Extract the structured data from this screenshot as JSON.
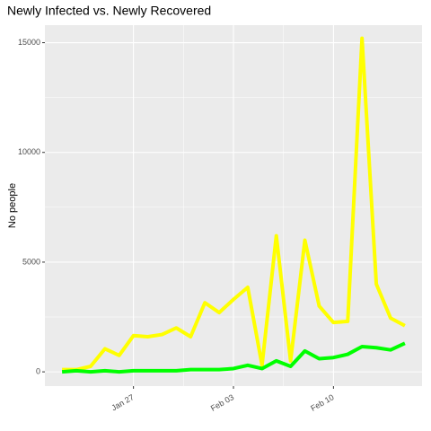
{
  "chart_data": {
    "type": "line",
    "title": "Newly Infected vs. Newly Recovered",
    "y_label": "No people",
    "categories": [
      "Jan 22",
      "Jan 23",
      "Jan 24",
      "Jan 25",
      "Jan 26",
      "Jan 27",
      "Jan 28",
      "Jan 29",
      "Jan 30",
      "Jan 31",
      "Feb 01",
      "Feb 02",
      "Feb 03",
      "Feb 04",
      "Feb 05",
      "Feb 06",
      "Feb 07",
      "Feb 08",
      "Feb 09",
      "Feb 10",
      "Feb 11",
      "Feb 12",
      "Feb 13",
      "Feb 14",
      "Feb 15"
    ],
    "xticks": [
      "Jan 27",
      "Feb 03",
      "Feb 10"
    ],
    "series": [
      {
        "color": "#ffff00",
        "values": [
          100,
          100,
          250,
          1050,
          750,
          1650,
          1600,
          1700,
          2000,
          1600,
          3150,
          2700,
          3300,
          3850,
          300,
          6200,
          500,
          6000,
          3000,
          2250,
          2300,
          15200,
          4000,
          2450,
          2100
        ]
      },
      {
        "color": "#00ff00",
        "values": [
          0,
          50,
          0,
          50,
          0,
          50,
          50,
          50,
          50,
          100,
          100,
          100,
          150,
          300,
          150,
          500,
          250,
          950,
          600,
          650,
          800,
          1150,
          1100,
          1000,
          1300
        ]
      }
    ],
    "ylim": [
      -650,
      15800
    ],
    "yticks": [
      0,
      5000,
      10000,
      15000
    ],
    "grid": true
  }
}
